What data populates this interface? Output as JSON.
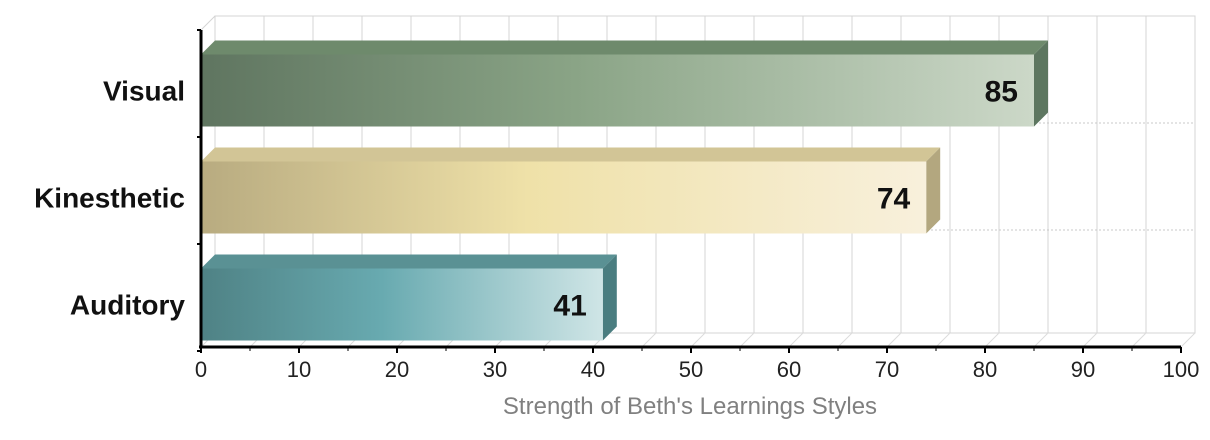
{
  "chart_data": {
    "type": "bar",
    "orientation": "horizontal",
    "categories": [
      "Visual",
      "Kinesthetic",
      "Auditory"
    ],
    "values": [
      85,
      74,
      41
    ],
    "title": "",
    "xlabel": "Strength of Beth's Learnings Styles",
    "ylabel": "",
    "xlim": [
      0,
      100
    ],
    "xticks": [
      0,
      10,
      20,
      30,
      40,
      50,
      60,
      70,
      80,
      90,
      100
    ],
    "grid": true,
    "data_labels": true,
    "bar_colors": [
      {
        "dark": "#5f7560",
        "mid": "#8aa486",
        "light": "#ccd8c8",
        "top": "#6e8a6c",
        "side": "#5d7660"
      },
      {
        "dark": "#b8ab80",
        "mid": "#efe1a8",
        "light": "#f8f0dc",
        "top": "#d2c596",
        "side": "#b3a77f"
      },
      {
        "dark": "#4f8285",
        "mid": "#68aab0",
        "light": "#cfe5e6",
        "top": "#5a9194",
        "side": "#4a7d80"
      }
    ]
  }
}
